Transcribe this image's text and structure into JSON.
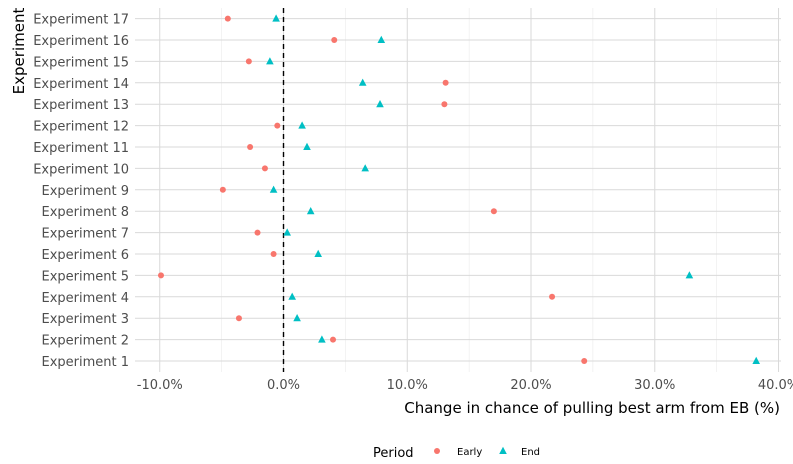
{
  "chart_data": {
    "type": "scatter",
    "orientation": "horizontal",
    "title": "",
    "xlabel": "Change in chance of pulling best arm from EB (%)",
    "ylabel": "Experiment",
    "xlim": [
      -12.0,
      40.2
    ],
    "x_ticks": [
      -10,
      0,
      10,
      20,
      30,
      40
    ],
    "x_tick_labels": [
      "-10.0%",
      "0.0%",
      "10.0%",
      "20.0%",
      "30.0%",
      "40.0%"
    ],
    "reference_line": 0,
    "grid": true,
    "categories": [
      "Experiment 1",
      "Experiment 2",
      "Experiment 3",
      "Experiment 4",
      "Experiment 5",
      "Experiment 6",
      "Experiment 7",
      "Experiment 8",
      "Experiment 9",
      "Experiment 10",
      "Experiment 11",
      "Experiment 12",
      "Experiment 13",
      "Experiment 14",
      "Experiment 15",
      "Experiment 16",
      "Experiment 17"
    ],
    "legend": {
      "title": "Period",
      "position": "bottom"
    },
    "series": [
      {
        "name": "Early",
        "marker": "circle",
        "color": "#f8766d",
        "values": [
          24.3,
          4.0,
          -3.6,
          21.7,
          -9.9,
          -0.8,
          -2.1,
          17.0,
          -4.9,
          -1.5,
          -2.7,
          -0.5,
          13.0,
          13.1,
          -2.8,
          4.1,
          -4.5
        ]
      },
      {
        "name": "End",
        "marker": "triangle",
        "color": "#00bfc4",
        "values": [
          38.2,
          3.1,
          1.1,
          0.7,
          32.8,
          2.8,
          0.3,
          2.2,
          -0.8,
          6.6,
          1.9,
          1.5,
          7.8,
          6.4,
          -1.1,
          7.9,
          -0.6
        ]
      }
    ]
  }
}
